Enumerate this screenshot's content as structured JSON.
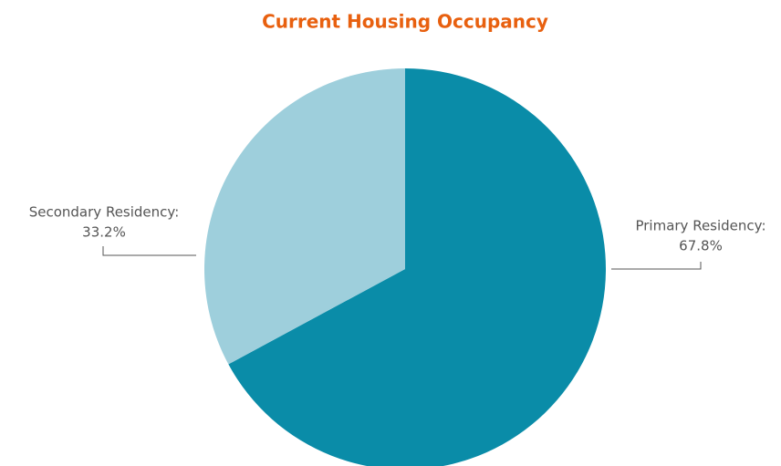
{
  "chart_data": {
    "type": "pie",
    "title": "Current Housing Occupancy",
    "categories": [
      "Primary Residency:",
      "Secondary Residency:"
    ],
    "values": [
      67.8,
      33.2
    ],
    "value_labels": [
      "67.8%",
      "33.2%"
    ],
    "colors": [
      "#0a8ca8",
      "#9ecfdc"
    ]
  }
}
